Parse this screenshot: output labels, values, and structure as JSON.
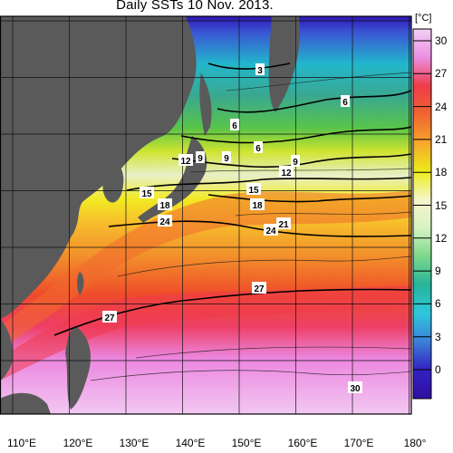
{
  "title": "Daily SSTs 10 Nov. 2013.",
  "unit": "[°C]",
  "colorbar": {
    "ticks": [
      "30",
      "27",
      "24",
      "21",
      "18",
      "15",
      "12",
      "9",
      "6",
      "3",
      "0"
    ],
    "gradient": [
      "#f3d0f5",
      "#ec8fe2",
      "#ee3c4a",
      "#f06530",
      "#f7a62c",
      "#ecec18",
      "#f5f5cc",
      "#d8f3c2",
      "#7bd88a",
      "#25b49a",
      "#2ec7dc",
      "#3b7fd8",
      "#3320c2",
      "#2e0fa0"
    ]
  },
  "longitude_labels": [
    "110°E",
    "120°E",
    "130°E",
    "140°E",
    "150°E",
    "160°E",
    "170°E",
    "180°"
  ],
  "contour_labels": [
    "3",
    "6",
    "6",
    "6",
    "9",
    "12",
    "9",
    "9",
    "12",
    "15",
    "18",
    "15",
    "18",
    "21",
    "24",
    "24",
    "27",
    "27",
    "30"
  ],
  "colors": {
    "land": "#5a5a5a",
    "grid": "#111111",
    "frame": "#000000"
  }
}
